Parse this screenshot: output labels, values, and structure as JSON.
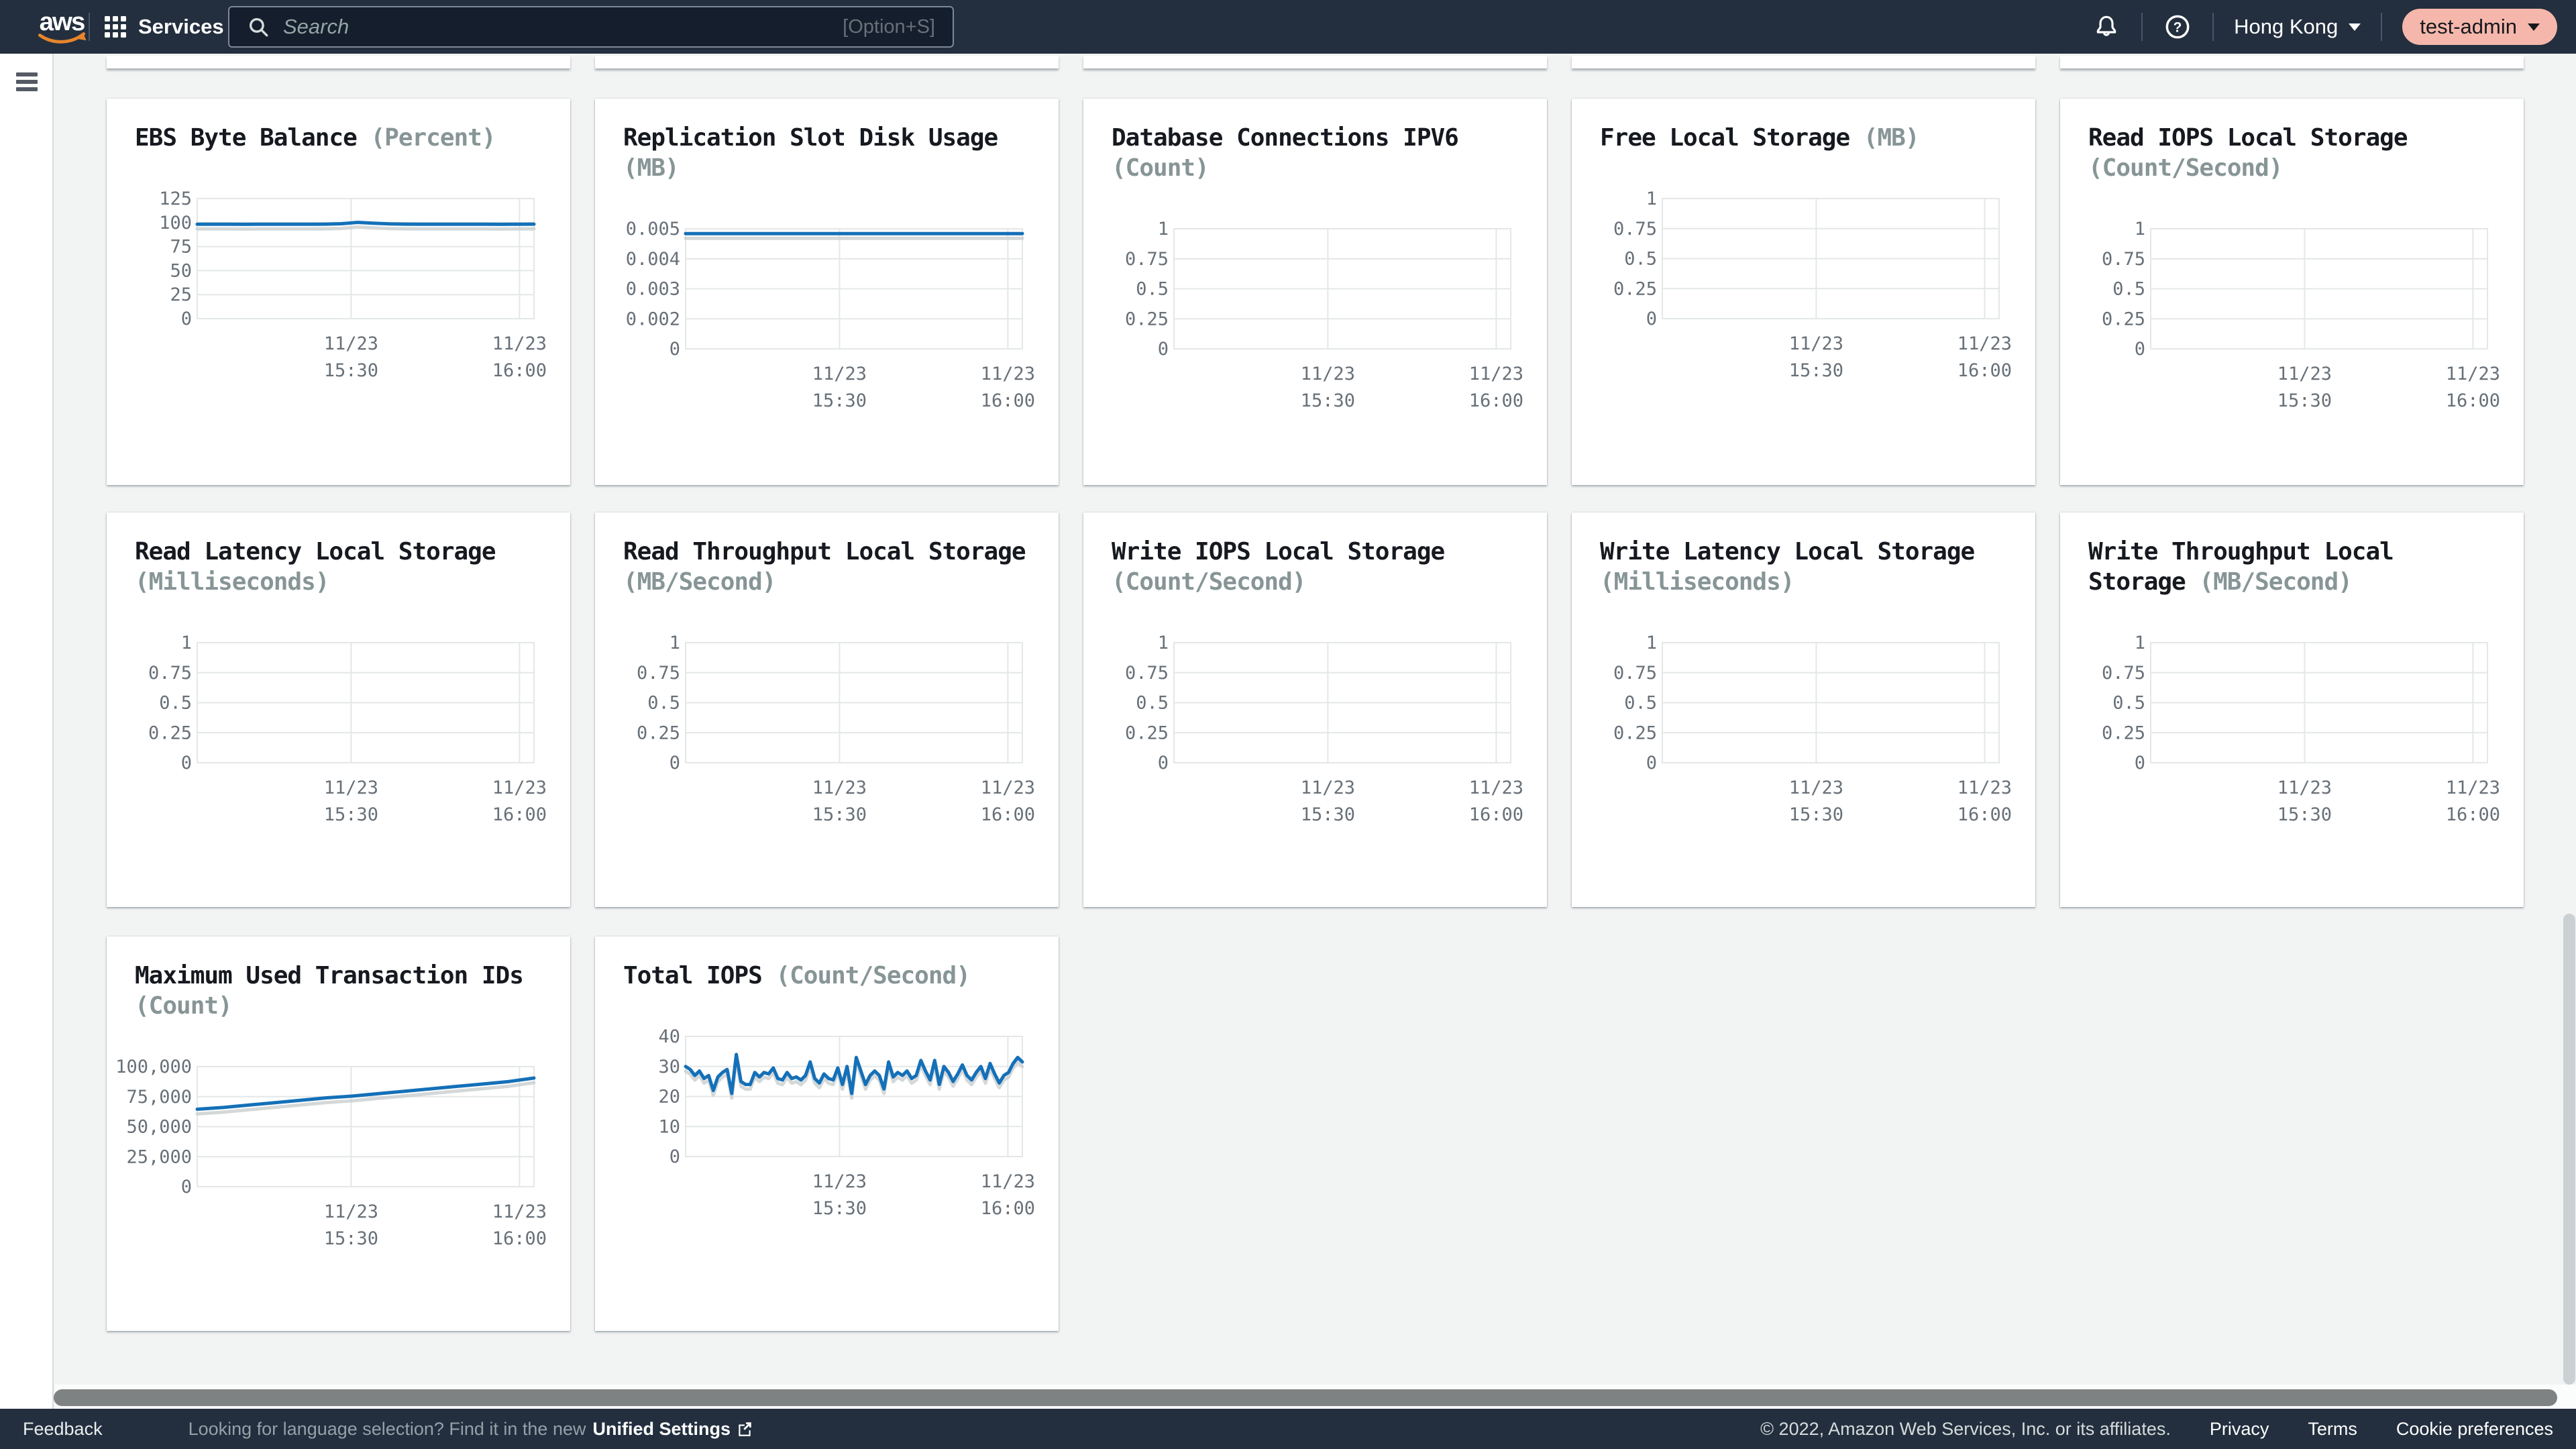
{
  "header": {
    "logo_text": "aws",
    "services_label": "Services",
    "search": {
      "placeholder": "Search",
      "shortcut": "[Option+S]"
    },
    "region_label": "Hong Kong",
    "account_label": "test-admin",
    "colors": {
      "bar": "#232f3e",
      "account_pill": "#f5b7ab",
      "logo_smile": "#e8852c"
    }
  },
  "partial_cards_count": 5,
  "chart_colors": {
    "line": "#1470b8",
    "line_shadow": "#c9ced0",
    "grid": "#e4e7e7",
    "title": "#16191f",
    "unit": "#879596",
    "tick": "#687078"
  },
  "chart_data": [
    {
      "type": "line",
      "title": "EBS Byte Balance",
      "unit": "(Percent)",
      "y_ticks": [
        "125",
        "100",
        "75",
        "50",
        "25",
        "0"
      ],
      "ylim": [
        0,
        125
      ],
      "x_ticks": [
        "11/23 15:30",
        "11/23 16:00"
      ],
      "values": [
        98.3,
        98.3,
        98.3,
        98.2,
        98.3,
        98.3,
        98.3,
        98.3,
        98.4,
        98.8,
        100.2,
        99.3,
        98.6,
        98.4,
        98.3,
        98.3,
        98.3,
        98.3,
        98.3,
        98.2,
        98.3,
        98.4
      ]
    },
    {
      "type": "line",
      "title": "Replication Slot Disk Usage",
      "unit": "(MB)",
      "y_ticks": [
        "0.005",
        "0.004",
        "0.003",
        "0.002",
        "0"
      ],
      "ylim": [
        0,
        0.005
      ],
      "x_ticks": [
        "11/23 15:30",
        "11/23 16:00"
      ],
      "values": [
        0.0048,
        0.0048,
        0.0048,
        0.0048,
        0.0048,
        0.0048,
        0.0048,
        0.0048,
        0.0048,
        0.0048,
        0.0048,
        0.0048,
        0.0048
      ]
    },
    {
      "type": "line",
      "title": "Database Connections IPV6",
      "unit": "(Count)",
      "y_ticks": [
        "1",
        "0.75",
        "0.5",
        "0.25",
        "0"
      ],
      "ylim": [
        0,
        1
      ],
      "x_ticks": [
        "11/23 15:30",
        "11/23 16:00"
      ],
      "values": []
    },
    {
      "type": "line",
      "title": "Free Local Storage",
      "unit": "(MB)",
      "y_ticks": [
        "1",
        "0.75",
        "0.5",
        "0.25",
        "0"
      ],
      "ylim": [
        0,
        1
      ],
      "x_ticks": [
        "11/23 15:30",
        "11/23 16:00"
      ],
      "values": []
    },
    {
      "type": "line",
      "title": "Read IOPS Local Storage",
      "unit": "(Count/Second)",
      "y_ticks": [
        "1",
        "0.75",
        "0.5",
        "0.25",
        "0"
      ],
      "ylim": [
        0,
        1
      ],
      "x_ticks": [
        "11/23 15:30",
        "11/23 16:00"
      ],
      "values": []
    },
    {
      "type": "line",
      "title": "Read Latency Local Storage",
      "unit": "(Milliseconds)",
      "y_ticks": [
        "1",
        "0.75",
        "0.5",
        "0.25",
        "0"
      ],
      "ylim": [
        0,
        1
      ],
      "x_ticks": [
        "11/23 15:30",
        "11/23 16:00"
      ],
      "values": []
    },
    {
      "type": "line",
      "title": "Read Throughput Local Storage",
      "unit": "(MB/Second)",
      "y_ticks": [
        "1",
        "0.75",
        "0.5",
        "0.25",
        "0"
      ],
      "ylim": [
        0,
        1
      ],
      "x_ticks": [
        "11/23 15:30",
        "11/23 16:00"
      ],
      "values": []
    },
    {
      "type": "line",
      "title": "Write IOPS Local Storage",
      "unit": "(Count/Second)",
      "y_ticks": [
        "1",
        "0.75",
        "0.5",
        "0.25",
        "0"
      ],
      "ylim": [
        0,
        1
      ],
      "x_ticks": [
        "11/23 15:30",
        "11/23 16:00"
      ],
      "values": []
    },
    {
      "type": "line",
      "title": "Write Latency Local Storage",
      "unit": "(Milliseconds)",
      "y_ticks": [
        "1",
        "0.75",
        "0.5",
        "0.25",
        "0"
      ],
      "ylim": [
        0,
        1
      ],
      "x_ticks": [
        "11/23 15:30",
        "11/23 16:00"
      ],
      "values": []
    },
    {
      "type": "line",
      "title": "Write Throughput Local Storage",
      "unit": "(MB/Second)",
      "y_ticks": [
        "1",
        "0.75",
        "0.5",
        "0.25",
        "0"
      ],
      "ylim": [
        0,
        1
      ],
      "x_ticks": [
        "11/23 15:30",
        "11/23 16:00"
      ],
      "values": []
    },
    {
      "type": "line",
      "title": "Maximum Used Transaction IDs",
      "unit": "(Count)",
      "y_ticks": [
        "100,000",
        "75,000",
        "50,000",
        "25,000",
        "0"
      ],
      "ylim": [
        0,
        100000
      ],
      "x_ticks": [
        "11/23 15:30",
        "11/23 16:00"
      ],
      "values": [
        64500,
        66000,
        68000,
        70000,
        72000,
        74000,
        75500,
        77500,
        79500,
        81500,
        83500,
        85500,
        87500,
        90500
      ]
    },
    {
      "type": "line",
      "title": "Total IOPS",
      "unit": "(Count/Second)",
      "y_ticks": [
        "40",
        "30",
        "20",
        "10",
        "0"
      ],
      "ylim": [
        0,
        40
      ],
      "x_ticks": [
        "11/23 15:30",
        "11/23 16:00"
      ],
      "values": [
        30,
        29,
        27,
        28.5,
        26,
        27,
        22,
        26.5,
        28,
        29,
        21,
        34,
        25,
        24,
        24,
        28,
        26.5,
        28,
        27.5,
        29.5,
        26,
        25.5,
        28,
        26,
        26.5,
        25.5,
        27,
        31.5,
        26,
        24.5,
        27.5,
        26,
        25.5,
        29.5,
        24,
        30,
        21,
        33,
        28.5,
        24,
        27,
        28.5,
        27,
        22.5,
        31.5,
        26.5,
        28,
        27,
        28.5,
        26,
        27,
        32,
        28.5,
        25.5,
        32,
        24,
        30,
        28,
        25,
        27.5,
        30.5,
        27,
        25.5,
        28,
        30,
        26,
        31,
        27.5,
        24.5,
        27,
        28,
        31,
        33,
        31.5
      ]
    }
  ],
  "footer": {
    "feedback": "Feedback",
    "language_hint": "Looking for language selection? Find it in the new",
    "unified_settings": "Unified Settings",
    "copyright": "© 2022, Amazon Web Services, Inc. or its affiliates.",
    "privacy": "Privacy",
    "terms": "Terms",
    "cookie": "Cookie preferences"
  }
}
